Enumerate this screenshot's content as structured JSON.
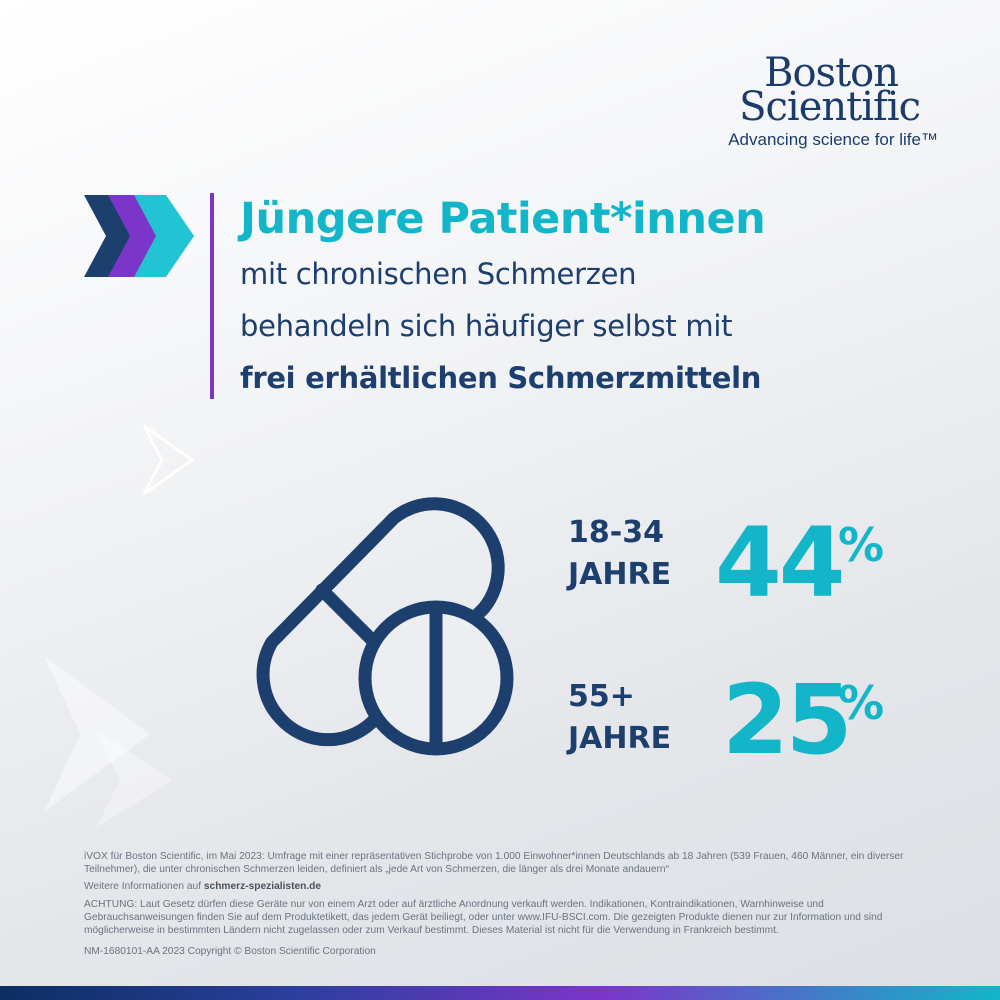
{
  "brand": {
    "name_line1": "Boston",
    "name_line2": "Scientific",
    "tagline": "Advancing science for life™"
  },
  "headline": {
    "title": "Jüngere Patient*innen",
    "line1": "mit chronischen Schmerzen",
    "line2": "behandeln sich häufiger selbst mit",
    "line3": "frei erhältlichen Schmerzmitteln"
  },
  "stats": [
    {
      "label_line1": "18-34",
      "label_line2": "JAHRE",
      "value": "44",
      "unit": "%"
    },
    {
      "label_line1": "55+",
      "label_line2": "JAHRE",
      "value": "25",
      "unit": "%"
    }
  ],
  "icons": {
    "arrows": "chevron-arrows-icon",
    "medication": "pill-capsule-icon"
  },
  "colors": {
    "navy": "#1d3f6e",
    "teal": "#12b6c8",
    "purple": "#7b35c9"
  },
  "footer": {
    "source": "iVOX für Boston Scientific, im Mai 2023: Umfrage mit einer repräsentativen Stichprobe von 1.000 Einwohner*innen Deutschlands ab 18 Jahren (539 Frauen, 460 Männer, ein diverser Teilnehmer), die unter chronischen Schmerzen leiden, definiert als „jede Art von Schmerzen, die länger als drei Monate andauern“",
    "more_info_prefix": "Weitere Informationen auf ",
    "more_info_link": "schmerz-spezialisten.de",
    "warning": "ACHTUNG: Laut Gesetz dürfen diese Geräte nur von einem Arzt oder auf ärztliche Anordnung verkauft werden. Indikationen, Kontraindikationen, Warnhinweise und Gebrauchsanweisungen finden Sie auf dem Produktetikett, das jedem Gerät beiliegt, oder unter www.IFU-BSCI.com. Die gezeigten Produkte dienen nur zur Information und sind möglicherweise in bestimmten Ländern nicht zugelassen oder zum Verkauf bestimmt. Dieses Material ist nicht für die Verwendung in Frankreich bestimmt.",
    "copyright": "NM-1680101-AA 2023  Copyright © Boston Scientific Corporation"
  }
}
